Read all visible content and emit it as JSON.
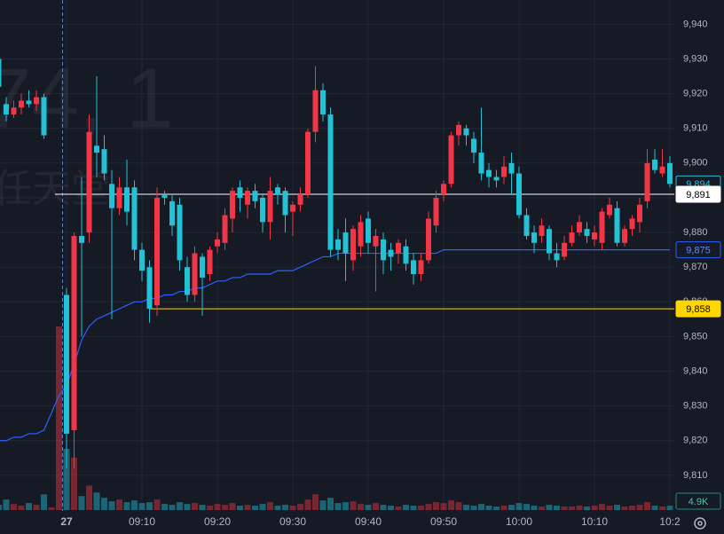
{
  "chart_data": {
    "type": "candlestick",
    "watermark": [
      "74, 1",
      "任天堂"
    ],
    "categories": [
      null,
      null,
      null,
      null,
      null,
      null,
      null,
      null,
      null,
      "27",
      null,
      null,
      null,
      null,
      null,
      null,
      null,
      null,
      null,
      "09:10",
      null,
      null,
      null,
      null,
      null,
      null,
      null,
      null,
      null,
      "09:20",
      null,
      null,
      null,
      null,
      null,
      null,
      null,
      null,
      null,
      "09:30",
      null,
      null,
      null,
      null,
      null,
      null,
      null,
      null,
      null,
      "09:40",
      null,
      null,
      null,
      null,
      null,
      null,
      null,
      null,
      null,
      "09:50",
      null,
      null,
      null,
      null,
      null,
      null,
      null,
      null,
      null,
      "10:00",
      null,
      null,
      null,
      null,
      null,
      null,
      null,
      null,
      null,
      "10:10",
      null,
      null,
      null,
      null,
      null,
      null,
      null,
      null,
      null,
      "10:2"
    ],
    "open": [
      9930,
      9917,
      9914,
      9916,
      9918,
      9917,
      9919,
      null,
      null,
      9862,
      9823,
      9879,
      9880,
      9905,
      9904,
      9894,
      9887,
      9893,
      9893,
      9875,
      9870,
      9859,
      9891,
      9889,
      9888,
      9870,
      9862,
      9873,
      9868,
      9876,
      9877,
      9884,
      9893,
      9888,
      9892,
      9890,
      9883,
      9893,
      9892,
      9886,
      9888,
      9891,
      9909,
      9921,
      9914,
      9878,
      9880,
      9872,
      9876,
      9884,
      9876,
      9878,
      9875,
      9874,
      9876,
      9872,
      9868,
      9872,
      9882,
      9891,
      9894,
      9908,
      9910,
      9907,
      9903,
      9898,
      9896,
      9896,
      9900,
      9897,
      9885,
      9880,
      9879,
      9881,
      9874,
      9873,
      9877,
      9880,
      9881,
      9878,
      9877,
      9885,
      9887,
      9877,
      9881,
      9883,
      9889,
      9901,
      9897,
      9900
    ],
    "high": [
      9932,
      9919,
      9918,
      9920,
      9921,
      9921,
      9920,
      null,
      null,
      9864,
      9880,
      9896,
      9914,
      9925,
      9908,
      9898,
      9896,
      9901,
      9895,
      9877,
      9872,
      9893,
      9892,
      9891,
      9890,
      9873,
      9876,
      9874,
      9876,
      9880,
      9887,
      9893,
      9895,
      9893,
      9894,
      9891,
      9896,
      9894,
      9893,
      9889,
      9893,
      9910,
      9928,
      9923,
      9916,
      9881,
      9884,
      9882,
      9885,
      9886,
      9881,
      9880,
      9877,
      9878,
      9878,
      9874,
      9874,
      9886,
      9892,
      9895,
      9909,
      9912,
      9911,
      9909,
      9916,
      9900,
      9898,
      9902,
      9903,
      9899,
      9887,
      9882,
      9884,
      9882,
      9877,
      9879,
      9882,
      9885,
      9883,
      9882,
      9887,
      9890,
      9889,
      9882,
      9885,
      9890,
      9904,
      9904,
      9904,
      9902
    ],
    "low": [
      9920,
      9912,
      9913,
      9914,
      9916,
      9915,
      9907,
      null,
      null,
      9812,
      9812,
      9850,
      9877,
      9896,
      9895,
      9855,
      9885,
      9882,
      9872,
      9866,
      9854,
      9856,
      9888,
      9879,
      9869,
      9860,
      9860,
      9856,
      9866,
      9874,
      9875,
      9880,
      9886,
      9884,
      9887,
      9880,
      9878,
      9888,
      9880,
      9879,
      9886,
      9890,
      9906,
      9912,
      9873,
      9872,
      9866,
      9869,
      9873,
      9874,
      9863,
      9868,
      9869,
      9871,
      9869,
      9865,
      9866,
      9871,
      9880,
      9889,
      9893,
      9905,
      9905,
      9900,
      9895,
      9893,
      9893,
      9894,
      9891,
      9884,
      9878,
      9874,
      9877,
      9872,
      9870,
      9872,
      9876,
      9879,
      9877,
      9876,
      9875,
      9884,
      9876,
      9876,
      9879,
      9880,
      9887,
      9897,
      9896,
      9893
    ],
    "close": [
      9922,
      9914,
      9916,
      9918,
      9917,
      9919,
      9908,
      null,
      null,
      9822,
      9879,
      9877,
      9909,
      9903,
      9897,
      9887,
      9893,
      9886,
      9875,
      9869,
      9858,
      9890,
      9890,
      9882,
      9872,
      9862,
      9874,
      9867,
      9875,
      9878,
      9885,
      9892,
      9890,
      9892,
      9889,
      9883,
      9892,
      9891,
      9885,
      9888,
      9891,
      9909,
      9921,
      9914,
      9875,
      9875,
      9874,
      9881,
      9883,
      9877,
      9879,
      9872,
      9873,
      9877,
      9871,
      9868,
      9872,
      9884,
      9890,
      9894,
      9908,
      9911,
      9908,
      9903,
      9897,
      9896,
      9895,
      9899,
      9897,
      9885,
      9879,
      9877,
      9882,
      9874,
      9872,
      9877,
      9880,
      9883,
      9879,
      9880,
      9886,
      9888,
      9877,
      9881,
      9884,
      9888,
      9900,
      9898,
      9899,
      9894
    ],
    "volume": [
      6000,
      12000,
      7000,
      5000,
      8000,
      6000,
      18000,
      3000,
      210000,
      70000,
      60000,
      16000,
      28000,
      20000,
      14000,
      10000,
      12000,
      9000,
      11000,
      8000,
      9000,
      12000,
      7000,
      6000,
      9000,
      7000,
      8000,
      6000,
      5000,
      7000,
      6000,
      8000,
      5000,
      6000,
      5000,
      7000,
      9000,
      5000,
      6000,
      5000,
      7000,
      12000,
      18000,
      11000,
      14000,
      8000,
      9000,
      10000,
      7000,
      6000,
      8000,
      6000,
      5000,
      4000,
      6000,
      5000,
      5000,
      7000,
      9000,
      8000,
      11000,
      9000,
      6000,
      5000,
      7000,
      5000,
      4000,
      5000,
      6000,
      8000,
      7000,
      5000,
      4000,
      6000,
      5000,
      4000,
      4000,
      5000,
      4000,
      5000,
      7000,
      5000,
      6000,
      4000,
      5000,
      6000,
      9000,
      5000,
      4000,
      4900
    ],
    "volume_label": "4.9K",
    "vwap": [
      9820,
      9820,
      9821,
      9821,
      9822,
      9822,
      9823,
      9828,
      9833,
      9836,
      9842,
      9849,
      9853,
      9855,
      9856,
      9857,
      9858,
      9859,
      9860,
      9860,
      9861,
      9861,
      9862,
      9862,
      9863,
      9863,
      9864,
      9864,
      9865,
      9866,
      9866,
      9867,
      9867,
      9868,
      9868,
      9868,
      9868,
      9869,
      9869,
      9869,
      9870,
      9871,
      9872,
      9873,
      9873,
      9874,
      9874,
      9874,
      9874,
      9874,
      9874,
      9874,
      9874,
      9874,
      9874,
      9874,
      9874,
      9874,
      9874,
      9875,
      9875,
      9875,
      9875,
      9875,
      9875,
      9875,
      9875,
      9875,
      9875,
      9875,
      9875,
      9875,
      9875,
      9875,
      9875,
      9875,
      9875,
      9875,
      9875,
      9875,
      9875,
      9875,
      9875,
      9875,
      9875,
      9875,
      9875,
      9875,
      9875,
      9875
    ],
    "vwap_color": "#2962ff",
    "vwap_label": "9,875",
    "last_label": "9,894",
    "up_color": "#f23645",
    "down_color": "#22c1d6",
    "hlines": [
      {
        "value": 9891,
        "label": "9,891",
        "color": "#ffffff"
      },
      {
        "value": 9858,
        "label": "9,858",
        "color": "#ffd600"
      }
    ],
    "ylim": [
      9800,
      9947
    ],
    "yticks": [
      {
        "value": 9810,
        "label": "9,810"
      },
      {
        "value": 9820,
        "label": "9,820"
      },
      {
        "value": 9830,
        "label": "9,830"
      },
      {
        "value": 9840,
        "label": "9,840"
      },
      {
        "value": 9850,
        "label": "9,850"
      },
      {
        "value": 9860,
        "label": "9,860"
      },
      {
        "value": 9870,
        "label": "9,870"
      },
      {
        "value": 9880,
        "label": "9,880"
      },
      {
        "value": 9890,
        "label": "9,890"
      },
      {
        "value": 9900,
        "label": "9,900"
      },
      {
        "value": 9910,
        "label": "9,910"
      },
      {
        "value": 9920,
        "label": "9,920"
      },
      {
        "value": 9930,
        "label": "9,930"
      },
      {
        "value": 9940,
        "label": "9,940"
      }
    ],
    "grid": true
  }
}
